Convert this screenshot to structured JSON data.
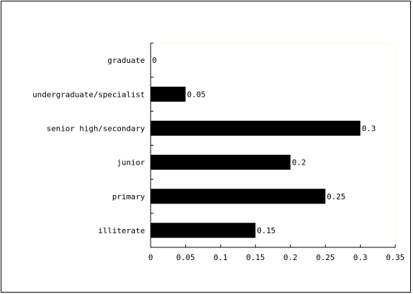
{
  "chart_data": {
    "type": "bar",
    "orientation": "horizontal",
    "title": "",
    "xlabel": "",
    "ylabel": "",
    "categories": [
      "graduate",
      "undergraduate/specialist",
      "senior high/secondary",
      "junior",
      "primary",
      "illiterate"
    ],
    "values": [
      0,
      0.05,
      0.3,
      0.2,
      0.25,
      0.15
    ],
    "data_labels": [
      "0",
      "0.05",
      "0.3",
      "0.2",
      "0.25",
      "0.15"
    ],
    "xlim": [
      0,
      0.35
    ],
    "x_ticks": [
      0,
      0.05,
      0.1,
      0.15,
      0.2,
      0.25,
      0.3,
      0.35
    ],
    "x_tick_labels": [
      "0",
      "0.05",
      "0.1",
      "0.15",
      "0.2",
      "0.25",
      "0.3",
      "0.35"
    ],
    "grid": false,
    "legend": "none",
    "bar_color": "#000000",
    "plot_border_color": "#ffffcc"
  }
}
